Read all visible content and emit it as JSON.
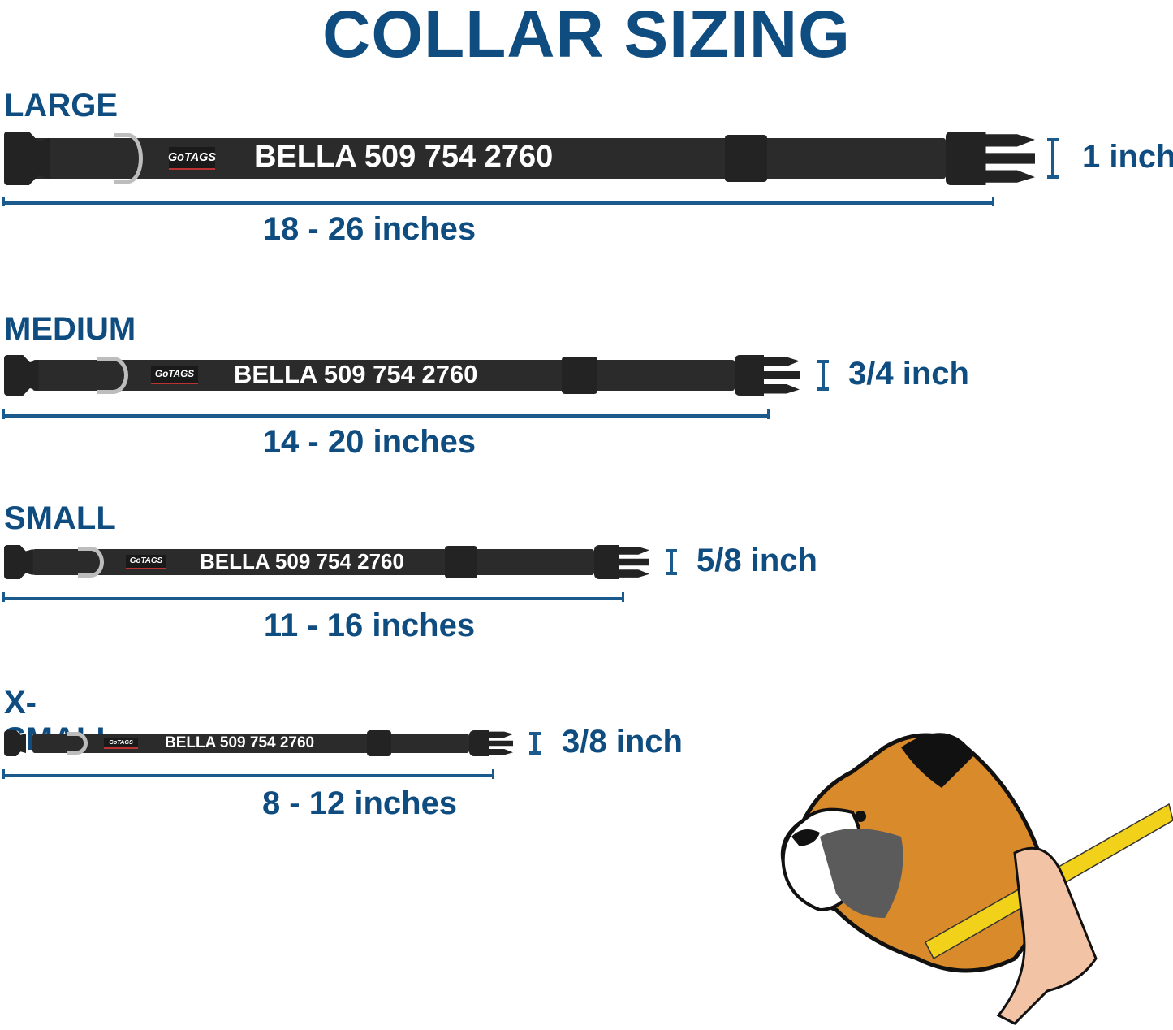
{
  "title": "COLLAR SIZING",
  "colors": {
    "accent": "#0f4d80",
    "strap": "#2b2b2b",
    "ring": "#bdbdbd"
  },
  "sizes": [
    {
      "name": "LARGE",
      "engraving": "BELLA 509 754 2760",
      "logo": "GoTAGS",
      "range": "18 - 26 inches",
      "width": "1 inch"
    },
    {
      "name": "MEDIUM",
      "engraving": "BELLA 509 754 2760",
      "logo": "GoTAGS",
      "range": "14 - 20 inches",
      "width": "3/4 inch"
    },
    {
      "name": "SMALL",
      "engraving": "BELLA 509 754 2760",
      "logo": "GoTAGS",
      "range": "11 - 16 inches",
      "width": "5/8 inch"
    },
    {
      "name": "X-SMALL",
      "engraving": "BELLA 509 754 2760",
      "logo": "GoTAGS",
      "range": "8 - 12 inches",
      "width": "3/8 inch"
    }
  ],
  "illustration": "boxer-dog-measuring-neck"
}
